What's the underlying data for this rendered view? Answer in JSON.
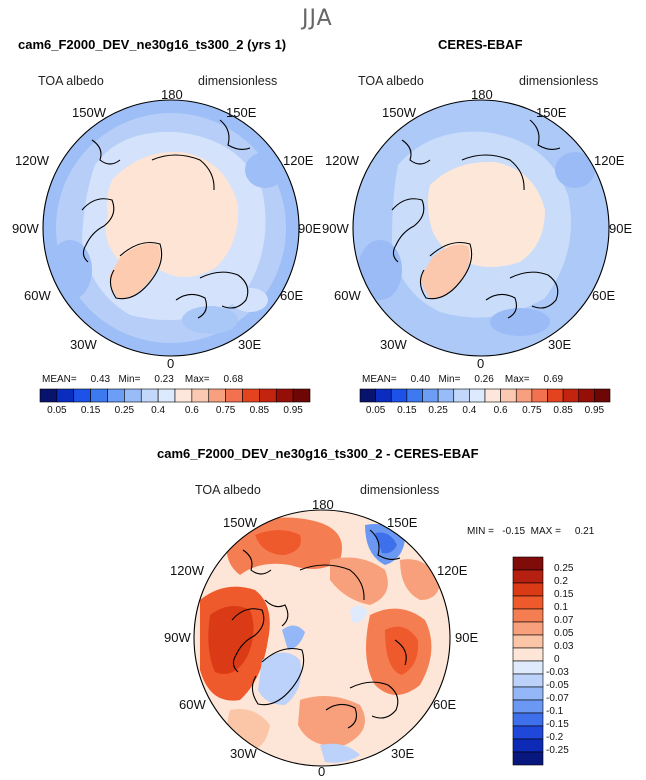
{
  "season": "JJA",
  "left_panel": {
    "title": "cam6_F2000_DEV_ne30g16_ts300_2 (yrs 1)",
    "variable": "TOA albedo",
    "units": "dimensionless",
    "stats": {
      "mean_label": "MEAN=",
      "mean": "0.43",
      "min_label": "Min=",
      "min": "0.23",
      "max_label": "Max=",
      "max": "0.68"
    }
  },
  "right_panel": {
    "title": "CERES-EBAF",
    "variable": "TOA albedo",
    "units": "dimensionless",
    "stats": {
      "mean_label": "MEAN=",
      "mean": "0.40",
      "min_label": "Min=",
      "min": "0.26",
      "max_label": "Max=",
      "max": "0.69"
    }
  },
  "diff_panel": {
    "title": "cam6_F2000_DEV_ne30g16_ts300_2 - CERES-EBAF",
    "variable": "TOA albedo",
    "units": "dimensionless",
    "minmax_text": "MIN =   -0.15  MAX =     0.21"
  },
  "longitudes": {
    "top": "180",
    "bottom": "0",
    "w150": "150W",
    "w120": "120W",
    "w90": "90W",
    "w60": "60W",
    "w30": "30W",
    "e150": "150E",
    "e120": "120E",
    "e90": "90E",
    "e60": "60E",
    "e30": "30E"
  },
  "colorbar_h": {
    "ticks": [
      "0.05",
      "0.15",
      "0.25",
      "0.4",
      "0.6",
      "0.75",
      "0.85",
      "0.95"
    ],
    "colors": [
      "#08136e",
      "#0a2dc0",
      "#1c52e8",
      "#3d7aef",
      "#6c9ef5",
      "#98bcf8",
      "#c2d7fa",
      "#dde9fc",
      "#fde7dc",
      "#fbc9b1",
      "#f7a07f",
      "#f2714f",
      "#e4431f",
      "#c32410",
      "#950f08",
      "#6e0606"
    ]
  },
  "colorbar_v": {
    "ticks": [
      "0.25",
      "0.2",
      "0.15",
      "0.1",
      "0.07",
      "0.05",
      "0.03",
      "0",
      "-0.03",
      "-0.05",
      "-0.07",
      "-0.1",
      "-0.15",
      "-0.2",
      "-0.25"
    ],
    "colors": [
      "#7f0c08",
      "#b52011",
      "#db3a16",
      "#ef5a2c",
      "#f57d52",
      "#f8a07b",
      "#fbc6a8",
      "#fde6d7",
      "#dfeafd",
      "#bcd2fa",
      "#94b7f7",
      "#6b98f3",
      "#3f70ec",
      "#1f48db",
      "#0d2ab7",
      "#08177e"
    ]
  }
}
